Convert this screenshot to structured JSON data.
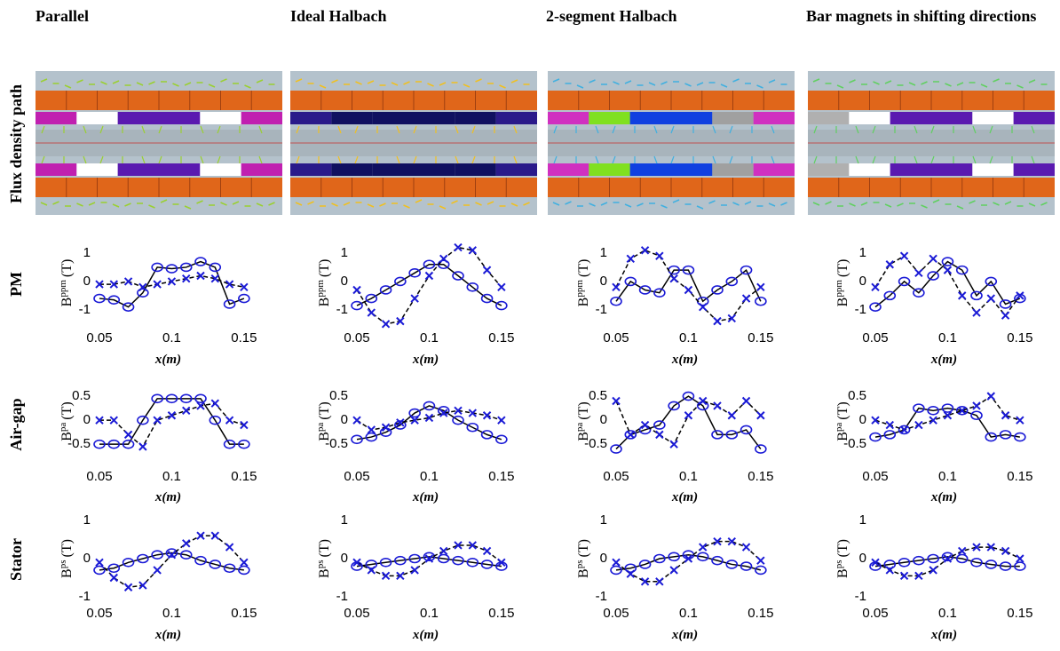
{
  "columns": [
    "Parallel",
    "Ideal Halbach",
    "2-segment Halbach",
    "Bar magnets in shifting directions"
  ],
  "rows": [
    "Flux density path",
    "PM",
    "Air-gap",
    "Stator"
  ],
  "chart_data": [
    {
      "type": "line",
      "xlabel": "x(m)",
      "ylabel": "B",
      "ylabel_sup": "ppm",
      "ylabel_unit": "(T)",
      "x": [
        0.05,
        0.06,
        0.07,
        0.08,
        0.09,
        0.1,
        0.11,
        0.12,
        0.13,
        0.14,
        0.15
      ],
      "xlim": [
        0.05,
        0.155
      ],
      "xticks": [
        0.05,
        0.1,
        0.15
      ],
      "ylim": [
        -1.6,
        1.5
      ],
      "yticks": [
        -1,
        0,
        1
      ],
      "series": [
        {
          "marker": "o",
          "color": "#1a1ad6",
          "line_color": "#000000",
          "dash": false,
          "values": [
            -0.6,
            -0.65,
            -0.9,
            -0.4,
            0.5,
            0.45,
            0.5,
            0.7,
            0.5,
            -0.8,
            -0.6
          ]
        },
        {
          "marker": "x",
          "color": "#1a1ad6",
          "line_color": "#000000",
          "dash": true,
          "values": [
            -0.1,
            -0.1,
            0,
            -0.2,
            -0.1,
            0,
            0.1,
            0.2,
            0.1,
            -0.1,
            -0.2
          ]
        }
      ]
    },
    {
      "type": "line",
      "xlabel": "x(m)",
      "ylabel": "B",
      "ylabel_sup": "ppm",
      "ylabel_unit": "(T)",
      "x": [
        0.05,
        0.06,
        0.07,
        0.08,
        0.09,
        0.1,
        0.11,
        0.12,
        0.13,
        0.14,
        0.15
      ],
      "xlim": [
        0.05,
        0.155
      ],
      "xticks": [
        0.05,
        0.1,
        0.15
      ],
      "ylim": [
        -1.6,
        1.5
      ],
      "yticks": [
        -1,
        0,
        1
      ],
      "series": [
        {
          "marker": "o",
          "color": "#1a1ad6",
          "line_color": "#000000",
          "dash": false,
          "values": [
            -0.85,
            -0.6,
            -0.3,
            0,
            0.3,
            0.6,
            0.6,
            0.2,
            -0.2,
            -0.6,
            -0.85
          ]
        },
        {
          "marker": "x",
          "color": "#1a1ad6",
          "line_color": "#000000",
          "dash": true,
          "values": [
            -0.3,
            -1.1,
            -1.5,
            -1.4,
            -0.6,
            0.2,
            0.8,
            1.2,
            1.1,
            0.4,
            -0.2
          ]
        }
      ]
    },
    {
      "type": "line",
      "xlabel": "x(m)",
      "ylabel": "B",
      "ylabel_sup": "ppm",
      "ylabel_unit": "(T)",
      "x": [
        0.05,
        0.06,
        0.07,
        0.08,
        0.09,
        0.1,
        0.11,
        0.12,
        0.13,
        0.14,
        0.15
      ],
      "xlim": [
        0.05,
        0.155
      ],
      "xticks": [
        0.05,
        0.1,
        0.15
      ],
      "ylim": [
        -1.6,
        1.5
      ],
      "yticks": [
        -1,
        0,
        1
      ],
      "series": [
        {
          "marker": "o",
          "color": "#1a1ad6",
          "line_color": "#000000",
          "dash": false,
          "values": [
            -0.7,
            0,
            -0.3,
            -0.4,
            0.4,
            0.4,
            -0.7,
            -0.3,
            0,
            0.4,
            -0.7
          ]
        },
        {
          "marker": "x",
          "color": "#1a1ad6",
          "line_color": "#000000",
          "dash": true,
          "values": [
            -0.2,
            0.8,
            1.1,
            0.9,
            0.1,
            -0.3,
            -0.9,
            -1.4,
            -1.3,
            -0.6,
            -0.2
          ]
        }
      ]
    },
    {
      "type": "line",
      "xlabel": "x(m)",
      "ylabel": "B",
      "ylabel_sup": "ppm",
      "ylabel_unit": "(T)",
      "x": [
        0.05,
        0.06,
        0.07,
        0.08,
        0.09,
        0.1,
        0.11,
        0.12,
        0.13,
        0.14,
        0.15
      ],
      "xlim": [
        0.05,
        0.155
      ],
      "xticks": [
        0.05,
        0.1,
        0.15
      ],
      "ylim": [
        -1.6,
        1.5
      ],
      "yticks": [
        -1,
        0,
        1
      ],
      "series": [
        {
          "marker": "o",
          "color": "#1a1ad6",
          "line_color": "#000000",
          "dash": false,
          "values": [
            -0.9,
            -0.5,
            0,
            -0.4,
            0.2,
            0.7,
            0.4,
            -0.5,
            0,
            -0.8,
            -0.6
          ]
        },
        {
          "marker": "x",
          "color": "#1a1ad6",
          "line_color": "#000000",
          "dash": true,
          "values": [
            -0.2,
            0.6,
            0.9,
            0.3,
            0.8,
            0.4,
            -0.5,
            -1.1,
            -0.6,
            -1.2,
            -0.5
          ]
        }
      ]
    },
    {
      "type": "line",
      "xlabel": "x(m)",
      "ylabel": "B",
      "ylabel_sup": "pa",
      "ylabel_unit": "(T)",
      "x": [
        0.05,
        0.06,
        0.07,
        0.08,
        0.09,
        0.1,
        0.11,
        0.12,
        0.13,
        0.14,
        0.15
      ],
      "xlim": [
        0.05,
        0.155
      ],
      "xticks": [
        0.05,
        0.1,
        0.15
      ],
      "ylim": [
        -0.7,
        0.65
      ],
      "yticks": [
        -0.5,
        0,
        0.5
      ],
      "series": [
        {
          "marker": "o",
          "color": "#1a1ad6",
          "line_color": "#000000",
          "dash": false,
          "values": [
            -0.5,
            -0.5,
            -0.5,
            0,
            0.45,
            0.45,
            0.45,
            0.45,
            0,
            -0.5,
            -0.5
          ]
        },
        {
          "marker": "x",
          "color": "#1a1ad6",
          "line_color": "#000000",
          "dash": true,
          "values": [
            0,
            0,
            -0.3,
            -0.55,
            0,
            0.1,
            0.2,
            0.3,
            0.35,
            0,
            -0.1
          ]
        }
      ]
    },
    {
      "type": "line",
      "xlabel": "x(m)",
      "ylabel": "B",
      "ylabel_sup": "pa",
      "ylabel_unit": "(T)",
      "x": [
        0.05,
        0.06,
        0.07,
        0.08,
        0.09,
        0.1,
        0.11,
        0.12,
        0.13,
        0.14,
        0.15
      ],
      "xlim": [
        0.05,
        0.155
      ],
      "xticks": [
        0.05,
        0.1,
        0.15
      ],
      "ylim": [
        -0.7,
        0.65
      ],
      "yticks": [
        -0.5,
        0,
        0.5
      ],
      "series": [
        {
          "marker": "o",
          "color": "#1a1ad6",
          "line_color": "#000000",
          "dash": false,
          "values": [
            -0.4,
            -0.35,
            -0.25,
            -0.1,
            0.15,
            0.3,
            0.2,
            0,
            -0.15,
            -0.3,
            -0.4
          ]
        },
        {
          "marker": "x",
          "color": "#1a1ad6",
          "line_color": "#000000",
          "dash": true,
          "values": [
            0,
            -0.2,
            -0.15,
            -0.05,
            0,
            0.05,
            0.15,
            0.2,
            0.15,
            0.1,
            0
          ]
        }
      ]
    },
    {
      "type": "line",
      "xlabel": "x(m)",
      "ylabel": "B",
      "ylabel_sup": "pa",
      "ylabel_unit": "(T)",
      "x": [
        0.05,
        0.06,
        0.07,
        0.08,
        0.09,
        0.1,
        0.11,
        0.12,
        0.13,
        0.14,
        0.15
      ],
      "xlim": [
        0.05,
        0.155
      ],
      "xticks": [
        0.05,
        0.1,
        0.15
      ],
      "ylim": [
        -0.7,
        0.65
      ],
      "yticks": [
        -0.5,
        0,
        0.5
      ],
      "series": [
        {
          "marker": "o",
          "color": "#1a1ad6",
          "line_color": "#000000",
          "dash": false,
          "values": [
            -0.6,
            -0.3,
            -0.2,
            -0.1,
            0.3,
            0.5,
            0.3,
            -0.3,
            -0.3,
            -0.2,
            -0.6
          ]
        },
        {
          "marker": "x",
          "color": "#1a1ad6",
          "line_color": "#000000",
          "dash": true,
          "values": [
            0.4,
            -0.3,
            -0.1,
            -0.3,
            -0.5,
            0.1,
            0.4,
            0.3,
            0.1,
            0.4,
            0.1
          ]
        }
      ]
    },
    {
      "type": "line",
      "xlabel": "x(m)",
      "ylabel": "B",
      "ylabel_sup": "pa",
      "ylabel_unit": "(T)",
      "x": [
        0.05,
        0.06,
        0.07,
        0.08,
        0.09,
        0.1,
        0.11,
        0.12,
        0.13,
        0.14,
        0.15
      ],
      "xlim": [
        0.05,
        0.155
      ],
      "xticks": [
        0.05,
        0.1,
        0.15
      ],
      "ylim": [
        -0.7,
        0.65
      ],
      "yticks": [
        -0.5,
        0,
        0.5
      ],
      "series": [
        {
          "marker": "o",
          "color": "#1a1ad6",
          "line_color": "#000000",
          "dash": false,
          "values": [
            -0.35,
            -0.3,
            -0.2,
            0.25,
            0.2,
            0.25,
            0.2,
            0.1,
            -0.35,
            -0.3,
            -0.35
          ]
        },
        {
          "marker": "x",
          "color": "#1a1ad6",
          "line_color": "#000000",
          "dash": true,
          "values": [
            0,
            -0.1,
            -0.2,
            -0.1,
            0,
            0.1,
            0.2,
            0.3,
            0.5,
            0.1,
            0
          ]
        }
      ]
    },
    {
      "type": "line",
      "xlabel": "x(m)",
      "ylabel": "B",
      "ylabel_sup": "ps",
      "ylabel_unit": "(T)",
      "x": [
        0.05,
        0.06,
        0.07,
        0.08,
        0.09,
        0.1,
        0.11,
        0.12,
        0.13,
        0.14,
        0.15
      ],
      "xlim": [
        0.05,
        0.155
      ],
      "xticks": [
        0.05,
        0.1,
        0.15
      ],
      "ylim": [
        -1,
        1
      ],
      "yticks": [
        -1,
        0,
        1
      ],
      "series": [
        {
          "marker": "o",
          "color": "#1a1ad6",
          "line_color": "#000000",
          "dash": false,
          "values": [
            -0.3,
            -0.25,
            -0.1,
            0,
            0.1,
            0.15,
            0.1,
            -0.05,
            -0.15,
            -0.25,
            -0.3
          ]
        },
        {
          "marker": "x",
          "color": "#1a1ad6",
          "line_color": "#000000",
          "dash": true,
          "values": [
            -0.1,
            -0.5,
            -0.75,
            -0.7,
            -0.3,
            0.1,
            0.4,
            0.6,
            0.6,
            0.3,
            -0.1
          ]
        }
      ]
    },
    {
      "type": "line",
      "xlabel": "x(m)",
      "ylabel": "B",
      "ylabel_sup": "ps",
      "ylabel_unit": "(T)",
      "x": [
        0.05,
        0.06,
        0.07,
        0.08,
        0.09,
        0.1,
        0.11,
        0.12,
        0.13,
        0.14,
        0.15
      ],
      "xlim": [
        0.05,
        0.155
      ],
      "xticks": [
        0.05,
        0.1,
        0.15
      ],
      "ylim": [
        -1,
        1
      ],
      "yticks": [
        -1,
        0,
        1
      ],
      "series": [
        {
          "marker": "o",
          "color": "#1a1ad6",
          "line_color": "#000000",
          "dash": false,
          "values": [
            -0.2,
            -0.15,
            -0.1,
            -0.05,
            0,
            0.05,
            0,
            -0.05,
            -0.1,
            -0.15,
            -0.2
          ]
        },
        {
          "marker": "x",
          "color": "#1a1ad6",
          "line_color": "#000000",
          "dash": true,
          "values": [
            -0.1,
            -0.3,
            -0.45,
            -0.45,
            -0.3,
            0,
            0.2,
            0.35,
            0.35,
            0.2,
            -0.1
          ]
        }
      ]
    },
    {
      "type": "line",
      "xlabel": "x(m)",
      "ylabel": "B",
      "ylabel_sup": "ps",
      "ylabel_unit": "(T)",
      "x": [
        0.05,
        0.06,
        0.07,
        0.08,
        0.09,
        0.1,
        0.11,
        0.12,
        0.13,
        0.14,
        0.15
      ],
      "xlim": [
        0.05,
        0.155
      ],
      "xticks": [
        0.05,
        0.1,
        0.15
      ],
      "ylim": [
        -1,
        1
      ],
      "yticks": [
        -1,
        0,
        1
      ],
      "series": [
        {
          "marker": "o",
          "color": "#1a1ad6",
          "line_color": "#000000",
          "dash": false,
          "values": [
            -0.3,
            -0.25,
            -0.15,
            0,
            0.05,
            0.1,
            0.05,
            -0.05,
            -0.15,
            -0.2,
            -0.3
          ]
        },
        {
          "marker": "x",
          "color": "#1a1ad6",
          "line_color": "#000000",
          "dash": true,
          "values": [
            -0.1,
            -0.4,
            -0.6,
            -0.6,
            -0.3,
            0,
            0.3,
            0.45,
            0.45,
            0.3,
            -0.05
          ]
        }
      ]
    },
    {
      "type": "line",
      "xlabel": "x(m)",
      "ylabel": "B",
      "ylabel_sup": "ps",
      "ylabel_unit": "(T)",
      "x": [
        0.05,
        0.06,
        0.07,
        0.08,
        0.09,
        0.1,
        0.11,
        0.12,
        0.13,
        0.14,
        0.15
      ],
      "xlim": [
        0.05,
        0.155
      ],
      "xticks": [
        0.05,
        0.1,
        0.15
      ],
      "ylim": [
        -1,
        1
      ],
      "yticks": [
        -1,
        0,
        1
      ],
      "series": [
        {
          "marker": "o",
          "color": "#1a1ad6",
          "line_color": "#000000",
          "dash": false,
          "values": [
            -0.2,
            -0.15,
            -0.1,
            -0.05,
            0,
            0.05,
            0,
            -0.1,
            -0.15,
            -0.2,
            -0.2
          ]
        },
        {
          "marker": "x",
          "color": "#1a1ad6",
          "line_color": "#000000",
          "dash": true,
          "values": [
            -0.1,
            -0.3,
            -0.45,
            -0.45,
            -0.3,
            0,
            0.2,
            0.3,
            0.3,
            0.2,
            0
          ]
        }
      ]
    }
  ]
}
